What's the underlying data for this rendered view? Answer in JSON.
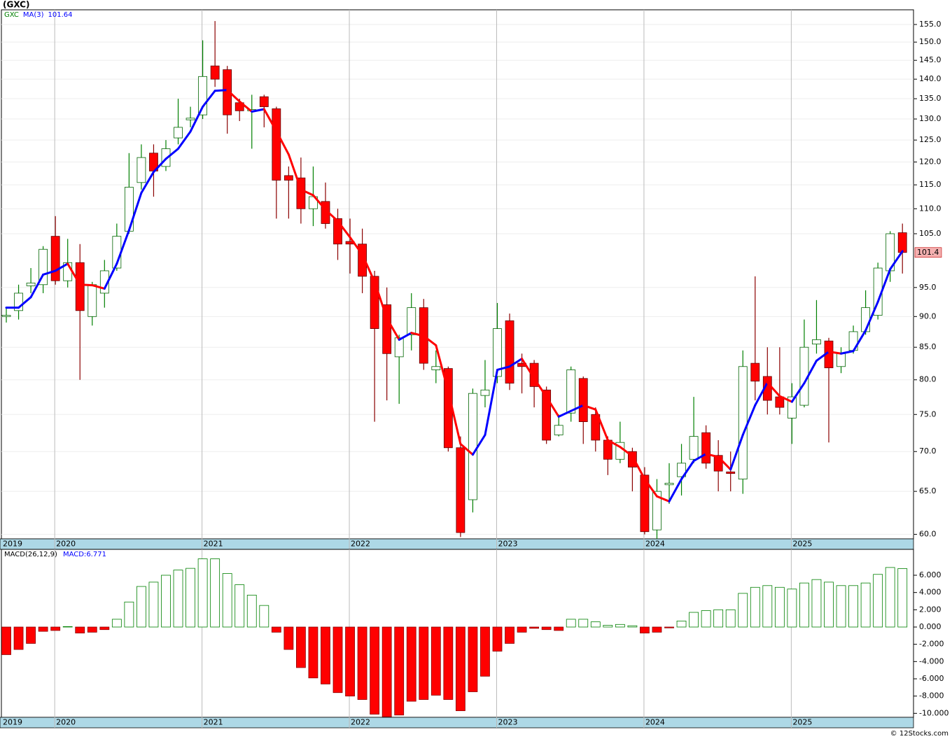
{
  "title": "(GXC)",
  "footer": "© 12Stocks.com",
  "chart_data": [
    {
      "type": "candlestick",
      "log_scale": true,
      "grid": true,
      "categories": [
        null,
        null,
        null,
        null,
        null,
        null,
        null,
        null,
        null,
        null,
        null,
        null,
        null,
        null,
        null,
        null,
        null,
        null,
        null,
        null,
        null,
        null,
        null,
        null,
        null,
        null,
        null,
        null,
        null,
        null,
        null,
        null,
        null,
        null,
        null,
        null,
        null,
        null,
        null,
        null,
        null,
        null,
        null,
        null,
        null,
        null,
        null,
        null,
        null,
        null,
        null,
        null,
        null,
        null,
        null,
        null,
        null,
        null,
        null,
        null,
        null,
        null,
        null,
        null,
        null,
        null,
        null,
        null,
        null,
        null,
        null,
        null,
        null,
        null
      ],
      "xlim": [
        -0.4,
        73.9
      ],
      "xticks": [
        {
          "value": -8,
          "label": "2019"
        },
        {
          "value": 4,
          "label": "2020"
        },
        {
          "value": 16,
          "label": "2021"
        },
        {
          "value": 28,
          "label": "2022"
        },
        {
          "value": 40,
          "label": "2023"
        },
        {
          "value": 52,
          "label": "2024"
        },
        {
          "value": 64,
          "label": "2025"
        }
      ],
      "ylim": [
        59.5,
        159.3
      ],
      "yticks": [
        {
          "value": 60,
          "label": "60.0"
        },
        {
          "value": 65,
          "label": "65.0"
        },
        {
          "value": 70,
          "label": "70.0"
        },
        {
          "value": 75,
          "label": "75.0"
        },
        {
          "value": 80,
          "label": "80.0"
        },
        {
          "value": 85,
          "label": "85.0"
        },
        {
          "value": 90,
          "label": "90.0"
        },
        {
          "value": 95,
          "label": "95.0"
        },
        {
          "value": 105,
          "label": "105.0"
        },
        {
          "value": 110,
          "label": "110.0"
        },
        {
          "value": 115,
          "label": "115.0"
        },
        {
          "value": 120,
          "label": "120.0"
        },
        {
          "value": 125,
          "label": "125.0"
        },
        {
          "value": 130,
          "label": "130.0"
        },
        {
          "value": 135,
          "label": "135.0"
        },
        {
          "value": 140,
          "label": "140.0"
        },
        {
          "value": 145,
          "label": "145.0"
        },
        {
          "value": 150,
          "label": "150.0"
        },
        {
          "value": 155,
          "label": "155.0"
        }
      ],
      "series": [
        {
          "name": "GXC",
          "up_color": "#008000",
          "down_color": "#ff0000",
          "open": [
            90,
            91,
            95.3,
            95.5,
            104.5,
            96.2,
            99.5,
            90,
            94,
            98.5,
            105.5,
            115.5,
            122,
            119,
            125.5,
            129.8,
            131,
            143.5,
            142.5,
            134,
            132,
            135.5,
            132.5,
            117,
            116.5,
            110,
            111.5,
            108,
            103.5,
            103,
            97,
            92,
            83.5,
            87,
            91.5,
            81.5,
            81.7,
            70.5,
            64,
            77.7,
            80.5,
            89.3,
            82.5,
            82.5,
            78.5,
            72.2,
            75.2,
            80.2,
            75,
            71.5,
            69,
            70,
            67,
            60.5,
            65.8,
            66.8,
            69,
            72.5,
            69.5,
            67.4,
            66.5,
            82.5,
            80.5,
            77.5,
            74.5,
            76.3,
            85.5,
            86,
            82,
            84.5,
            87.5,
            90.2,
            98,
            105.2
          ],
          "high": [
            91.5,
            95.5,
            98.5,
            102.6,
            108.5,
            104,
            103,
            96,
            100,
            107,
            122,
            124,
            124,
            125,
            135,
            133,
            150.5,
            156,
            143.5,
            135,
            136,
            136,
            133,
            119,
            121,
            119,
            115.5,
            110,
            108,
            106,
            98,
            95,
            87,
            94,
            93,
            84.5,
            82,
            72,
            78.7,
            83,
            92.3,
            90.5,
            84,
            83,
            79,
            75,
            82,
            80.5,
            76,
            72,
            74,
            70.5,
            68,
            66.5,
            68.5,
            71,
            77.5,
            73.5,
            71.5,
            70,
            84.5,
            97,
            85,
            85,
            79.5,
            89.5,
            92.8,
            86.5,
            85,
            88.5,
            94.5,
            99.5,
            105.5,
            107
          ],
          "low": [
            89,
            89.5,
            94,
            94,
            95.5,
            95,
            80,
            88.5,
            91.5,
            98,
            105,
            114,
            112.5,
            118,
            124,
            128,
            130,
            138,
            126.5,
            129.5,
            123,
            128,
            108,
            108,
            107,
            106.5,
            106,
            100,
            97.5,
            94,
            74,
            77,
            76.5,
            84.5,
            81.5,
            79.5,
            70,
            59.7,
            62.5,
            76,
            79.5,
            78.5,
            78,
            76,
            71,
            72,
            74,
            71,
            70,
            67,
            68.5,
            65,
            60,
            59.5,
            63.5,
            64.5,
            68.5,
            67.8,
            65,
            65,
            64.7,
            77,
            75,
            75,
            71,
            76,
            84,
            71.2,
            81,
            84,
            87,
            89.5,
            96,
            97.5
          ],
          "close": [
            90.2,
            94,
            95.8,
            102,
            96.2,
            99.5,
            91,
            95.5,
            98,
            104.5,
            114.5,
            121,
            118,
            123,
            128,
            130.2,
            140.7,
            140,
            131,
            132,
            132.3,
            133,
            116,
            116,
            110,
            112.5,
            107,
            103,
            103,
            97,
            88,
            84,
            86.5,
            91.5,
            82.5,
            82,
            70.5,
            60.2,
            78,
            78.5,
            88,
            79.5,
            82,
            79,
            71.5,
            73.5,
            81.5,
            74,
            71.5,
            69,
            71.2,
            68,
            60.3,
            65,
            66,
            68.5,
            72,
            68.5,
            67.5,
            67.2,
            82,
            79.8,
            77,
            76,
            77.5,
            85,
            86.2,
            81.8,
            84,
            87.5,
            91.5,
            98.5,
            105,
            101.4
          ]
        },
        {
          "name": "MA(3)",
          "rise_color": "#0000ff",
          "fall_color": "#ff0000",
          "values": [
            91.5,
            91.5,
            93.3,
            97.3,
            98,
            99.3,
            95.5,
            95.4,
            94.8,
            99.3,
            105.7,
            113.3,
            117.8,
            120.7,
            123,
            127,
            133,
            137,
            137.2,
            134.3,
            131.8,
            132.4,
            127.1,
            121.7,
            114,
            112.8,
            109.8,
            107.5,
            104.3,
            101,
            96,
            89.7,
            86.2,
            87.3,
            86.8,
            85.3,
            78.3,
            71,
            69.6,
            72.2,
            81.5,
            82,
            83.2,
            80.2,
            77.5,
            74.7,
            75.5,
            76.3,
            75.7,
            71.5,
            70.6,
            69.4,
            66.5,
            64.4,
            63.8,
            66.5,
            68.8,
            69.7,
            69.3,
            67.7,
            72.2,
            76.3,
            79.6,
            77.6,
            76.8,
            79.5,
            82.9,
            84.3,
            84,
            84.4,
            87.7,
            92.5,
            98.3,
            101.64
          ]
        }
      ]
    },
    {
      "type": "bar",
      "current_label": "MACD:",
      "xlim": [
        -0.4,
        73.9
      ],
      "xticks": [
        {
          "value": -8,
          "label": "2019"
        },
        {
          "value": 4,
          "label": "2020"
        },
        {
          "value": 16,
          "label": "2021"
        },
        {
          "value": 28,
          "label": "2022"
        },
        {
          "value": 40,
          "label": "2023"
        },
        {
          "value": 52,
          "label": "2024"
        },
        {
          "value": 64,
          "label": "2025"
        }
      ],
      "ylim": [
        -10.46,
        9.0
      ],
      "yticks": [
        {
          "value": -10,
          "label": "-10.000"
        },
        {
          "value": -8,
          "label": "-8.000"
        },
        {
          "value": -6,
          "label": "-6.000"
        },
        {
          "value": -4,
          "label": "-4.000"
        },
        {
          "value": -2,
          "label": "-2.000"
        },
        {
          "value": 0,
          "label": "0.000"
        },
        {
          "value": 2,
          "label": "2.000"
        },
        {
          "value": 4,
          "label": "4.000"
        },
        {
          "value": 6,
          "label": "6.000"
        }
      ],
      "series": [
        {
          "name": "MACD(26,12,9)",
          "pos_color": "#008000",
          "neg_color": "#ff0000",
          "values": [
            -3.2,
            -2.6,
            -1.9,
            -0.5,
            -0.4,
            0.05,
            -0.7,
            -0.6,
            -0.3,
            0.9,
            2.9,
            4.7,
            5.2,
            6.0,
            6.6,
            6.8,
            7.9,
            7.9,
            6.2,
            4.9,
            3.7,
            2.5,
            -0.6,
            -2.6,
            -4.7,
            -5.9,
            -6.6,
            -7.6,
            -8.0,
            -8.4,
            -10.1,
            -10.4,
            -10.2,
            -8.6,
            -8.4,
            -7.9,
            -8.4,
            -9.7,
            -7.5,
            -5.7,
            -2.8,
            -1.9,
            -0.6,
            -0.15,
            -0.3,
            -0.4,
            0.9,
            0.9,
            0.6,
            0.2,
            0.3,
            0.15,
            -0.7,
            -0.6,
            -0.1,
            0.7,
            1.7,
            1.9,
            2.0,
            2.0,
            3.9,
            4.6,
            4.8,
            4.6,
            4.4,
            5.1,
            5.5,
            5.2,
            4.8,
            4.8,
            5.1,
            6.1,
            6.9,
            6.771
          ]
        }
      ]
    }
  ]
}
